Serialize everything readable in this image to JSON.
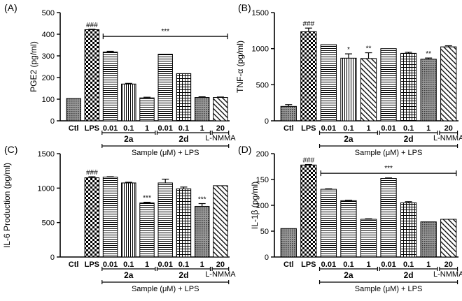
{
  "chart_data": [
    {
      "type": "bar",
      "panel_label": "(A)",
      "ylabel": "PGE2 (pg/ml)",
      "ylim": [
        0,
        500
      ],
      "yticks": [
        "0",
        "100",
        "200",
        "300",
        "400",
        "500"
      ],
      "categories": [
        "Ctl",
        "LPS",
        "0.01",
        "0.1",
        "1",
        "0.01",
        "0.1",
        "1",
        "20"
      ],
      "values": [
        103,
        421,
        318,
        170,
        106,
        308,
        218,
        108,
        108
      ],
      "errors": [
        0,
        2,
        3,
        3,
        3,
        0,
        0,
        3,
        2
      ],
      "patterns": [
        "dots",
        "checker",
        "hlines",
        "vlines",
        "hlines",
        "hlines",
        "grid",
        "dots",
        "diag"
      ],
      "annotations": [
        {
          "index": 1,
          "text": "###"
        }
      ],
      "bracket": {
        "text": "***",
        "from": 2,
        "to": 8,
        "y": 390
      },
      "groups": [
        {
          "label": "2a",
          "from": 2,
          "to": 4
        },
        {
          "label": "2d",
          "from": 5,
          "to": 7
        },
        {
          "label": "L-NMMA",
          "from": 8,
          "to": 8
        }
      ],
      "footer": "Sample (μM) + LPS"
    },
    {
      "type": "bar",
      "panel_label": "(B)",
      "ylabel": "TNF-α (pg/ml)",
      "ylim": [
        0,
        1500
      ],
      "yticks": [
        "0",
        "500",
        "1000",
        "1500"
      ],
      "categories": [
        "Ctl",
        "LPS",
        "0.01",
        "0.1",
        "1",
        "0.01",
        "0.1",
        "1",
        "20"
      ],
      "values": [
        200,
        1235,
        1055,
        868,
        863,
        1000,
        935,
        855,
        1025
      ],
      "errors": [
        25,
        50,
        0,
        60,
        80,
        0,
        15,
        15,
        15
      ],
      "patterns": [
        "dots",
        "checker",
        "hlines",
        "vlines",
        "diag",
        "hlines",
        "grid",
        "dots",
        "diag"
      ],
      "annotations": [
        {
          "index": 1,
          "text": "###"
        },
        {
          "index": 3,
          "text": "*"
        },
        {
          "index": 4,
          "text": "**"
        },
        {
          "index": 7,
          "text": "**"
        }
      ],
      "groups": [
        {
          "label": "2a",
          "from": 2,
          "to": 4
        },
        {
          "label": "2d",
          "from": 5,
          "to": 7
        },
        {
          "label": "L-NMMA",
          "from": 8,
          "to": 8
        }
      ],
      "footer": "Sample (μM) + LPS"
    },
    {
      "type": "bar",
      "panel_label": "(C)",
      "ylabel": "IL-6 Production (pg/ml)",
      "ylim": [
        0,
        1500
      ],
      "yticks": [
        "0",
        "500",
        "1000",
        "1500"
      ],
      "categories": [
        "Ctl",
        "LPS",
        "0.01",
        "0.1",
        "1",
        "0.01",
        "0.1",
        "1",
        "20"
      ],
      "values": [
        0,
        1150,
        1160,
        1075,
        785,
        1075,
        990,
        735,
        1035
      ],
      "errors": [
        0,
        15,
        5,
        10,
        10,
        55,
        25,
        40,
        0
      ],
      "patterns": [
        "dots",
        "checker",
        "hlines",
        "vlines",
        "hlines",
        "hlines",
        "grid",
        "dots",
        "diag"
      ],
      "annotations": [
        {
          "index": 1,
          "text": "###"
        },
        {
          "index": 4,
          "text": "***"
        },
        {
          "index": 7,
          "text": "***"
        }
      ],
      "groups": [
        {
          "label": "2a",
          "from": 2,
          "to": 4
        },
        {
          "label": "2d",
          "from": 5,
          "to": 7
        },
        {
          "label": "L-NMMA",
          "from": 8,
          "to": 8
        }
      ],
      "footer": "Sample (μM) + LPS"
    },
    {
      "type": "bar",
      "panel_label": "(D)",
      "ylabel": "IL-1β (pg/ml)",
      "ylim": [
        0,
        200
      ],
      "yticks": [
        "0",
        "50",
        "100",
        "150",
        "200"
      ],
      "categories": [
        "Ctl",
        "LPS",
        "0.01",
        "0.1",
        "1",
        "0.01",
        "0.1",
        "1",
        "20"
      ],
      "values": [
        55,
        178,
        131,
        109,
        73,
        152,
        105,
        68,
        73
      ],
      "errors": [
        0,
        1,
        1,
        1,
        1,
        1,
        2,
        0,
        0
      ],
      "patterns": [
        "dots",
        "checker",
        "hlines",
        "hlines",
        "hlines",
        "hlines",
        "grid",
        "dots",
        "diag"
      ],
      "annotations": [
        {
          "index": 1,
          "text": "###"
        }
      ],
      "bracket": {
        "text": "***",
        "from": 2,
        "to": 8,
        "y": 162
      },
      "groups": [
        {
          "label": "2a",
          "from": 2,
          "to": 4
        },
        {
          "label": "2d",
          "from": 5,
          "to": 7
        },
        {
          "label": "L-NMMA",
          "from": 8,
          "to": 8
        }
      ],
      "footer": "Sample (μM) + LPS"
    }
  ]
}
